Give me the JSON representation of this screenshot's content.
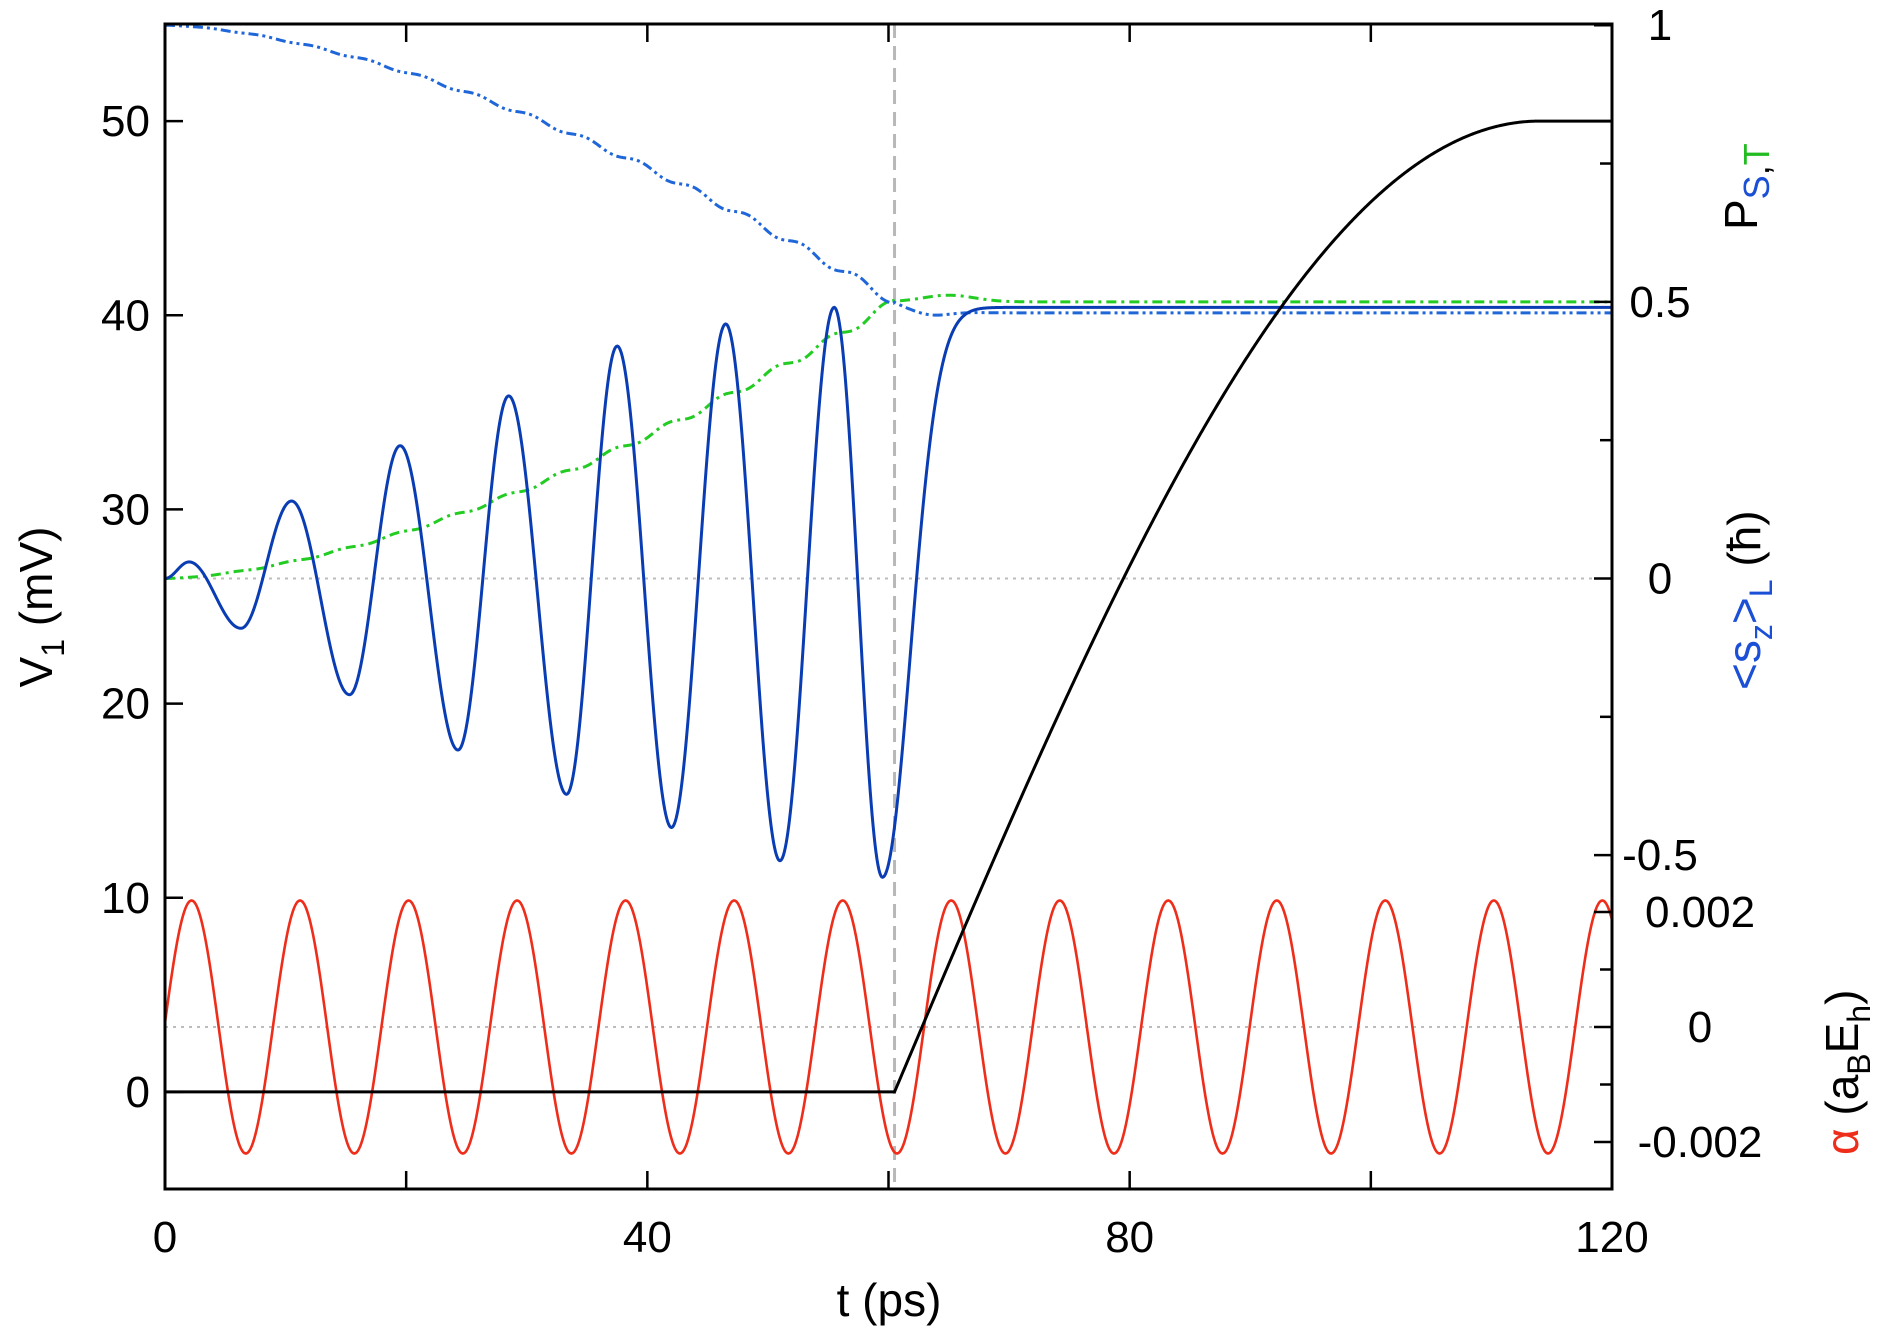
{
  "chart_data": {
    "type": "line",
    "x_axis": {
      "label": "t (ps)",
      "range": [
        0,
        120
      ],
      "ticks": [
        0,
        40,
        80,
        120
      ],
      "tick_labels": [
        "0",
        "40",
        "80",
        "120"
      ],
      "minor_ticks": [
        20,
        60,
        100
      ]
    },
    "y_left": {
      "label_main": "V",
      "label_sub": "1",
      "label_rest": " (mV)",
      "range": [
        -5,
        55
      ],
      "ticks": [
        0,
        10,
        20,
        30,
        40,
        50
      ],
      "tick_labels": [
        "0",
        "10",
        "20",
        "30",
        "40",
        "50"
      ]
    },
    "y_right_upper": {
      "label_P": "P",
      "label_S": "S",
      "label_comma": ",",
      "label_T": "T",
      "label_sz_open": "<s",
      "label_sz_sub": "z",
      "label_sz_close": ">",
      "label_sz_L": "L",
      "label_sz_unit": " (ħ)",
      "range": [
        -0.5,
        1
      ],
      "ticks": [
        -0.5,
        0,
        0.5,
        1
      ],
      "tick_labels": [
        "-0.5",
        "0",
        "0.5",
        "1"
      ],
      "spin_zero_line": 0
    },
    "y_right_lower": {
      "label_alpha": "α",
      "label_unit_open": " (a",
      "label_unit_B": "B",
      "label_unit_E": "E",
      "label_unit_h": "h",
      "label_unit_close": ")",
      "range": [
        -0.00275,
        0.00275
      ],
      "ticks": [
        -0.002,
        0,
        0.002
      ],
      "tick_labels": [
        "-0.002",
        "0",
        "0.002"
      ]
    },
    "switch_time": 60.5,
    "series": [
      {
        "name": "V1",
        "axis": "left",
        "color": "#000000",
        "style": "solid",
        "description": "zero until t=60.5 ps, then sine ramp to 50 mV at t=114 ps, flat afterwards",
        "ramp_start": 60.5,
        "ramp_end": 114,
        "final_value": 50
      },
      {
        "name": "<sz>L",
        "axis": "right_upper",
        "color": "#0a3db3",
        "style": "solid",
        "description": "growing oscillation, saturates to about 0.49 after the switch",
        "period": 9,
        "peaks": [
          [
            2,
            0.03
          ],
          [
            10.5,
            0.14
          ],
          [
            19.5,
            0.24
          ],
          [
            28.5,
            0.33
          ],
          [
            37.5,
            0.42
          ],
          [
            46.5,
            0.46
          ],
          [
            55.5,
            0.49
          ]
        ],
        "troughs": [
          [
            6.3,
            -0.09
          ],
          [
            15.3,
            -0.21
          ],
          [
            24.3,
            -0.31
          ],
          [
            33.3,
            -0.39
          ],
          [
            42,
            -0.45
          ],
          [
            51,
            -0.51
          ],
          [
            59.5,
            -0.54
          ]
        ],
        "final_value": 0.49
      },
      {
        "name": "P_S",
        "axis": "right_upper",
        "color": "#1f66d9",
        "style": "dashdotdot",
        "start_value": 1,
        "value_at_switch": 0.5,
        "final_value": 0.48
      },
      {
        "name": "P_T",
        "axis": "right_upper",
        "color": "#22cc22",
        "style": "dashdot",
        "start_value": 0,
        "value_at_switch": 0.5,
        "final_value": 0.5
      },
      {
        "name": "alpha",
        "axis": "right_lower",
        "color": "#ee2d1a",
        "style": "solid",
        "amplitude": 0.0022,
        "period": 9,
        "phase_note": "maximum near t=2.2 ps"
      }
    ],
    "annotations": {
      "vertical_dashed_line_at": 60.5,
      "dotted_zero_lines": [
        "<sz>L = 0",
        "alpha = 0"
      ]
    }
  }
}
